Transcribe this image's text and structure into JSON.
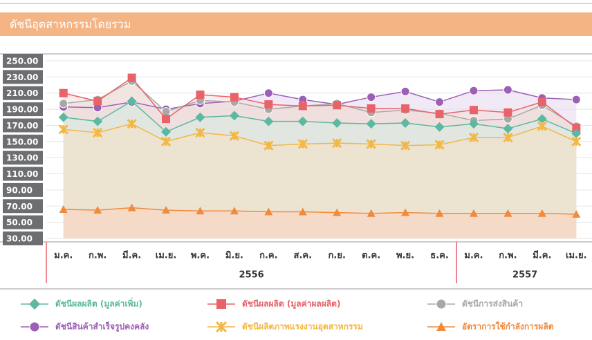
{
  "chart_data": {
    "type": "line",
    "title": "ดัชนีอุตสาหกรรมโดยรวม",
    "groups": [
      {
        "label": "2556",
        "categories": [
          "ม.ค.",
          "ก.พ.",
          "มี.ค.",
          "เม.ย.",
          "พ.ค.",
          "มิ.ย.",
          "ก.ค.",
          "ส.ค.",
          "ก.ย.",
          "ต.ค.",
          "พ.ย.",
          "ธ.ค."
        ]
      },
      {
        "label": "2557",
        "categories": [
          "ม.ค.",
          "ก.พ.",
          "มี.ค.",
          "เม.ย."
        ]
      }
    ],
    "ylim": [
      30,
      250
    ],
    "yticks": [
      {
        "value": 250,
        "label": "250.00"
      },
      {
        "value": 230,
        "label": "230.00"
      },
      {
        "value": 210,
        "label": "210.00"
      },
      {
        "value": 190,
        "label": "190.00"
      },
      {
        "value": 170,
        "label": "170.00"
      },
      {
        "value": 150,
        "label": "150.00"
      },
      {
        "value": 130,
        "label": "130.00"
      },
      {
        "value": 110,
        "label": "110.00"
      },
      {
        "value": 90,
        "label": "90.00"
      },
      {
        "value": 70,
        "label": "70.00"
      },
      {
        "value": 50,
        "label": "50.00"
      },
      {
        "value": 30,
        "label": "30.00"
      }
    ],
    "grid": true,
    "series": [
      {
        "name": "ดัชนีสินค้าสำเร็จรูปคงคลัง",
        "color": "#9b5fb5",
        "area_color": "#e6d9ee",
        "marker": "circle",
        "values": [
          193,
          192,
          199,
          190,
          197,
          200,
          210,
          202,
          196,
          205,
          212,
          199,
          213,
          214,
          204,
          202
        ]
      },
      {
        "name": "ดัชนีการส่งสินค้า",
        "color": "#a7a9a4",
        "area_color": "#dedfdb",
        "marker": "circle",
        "values": [
          197,
          202,
          225,
          187,
          201,
          199,
          190,
          194,
          197,
          186,
          189,
          185,
          176,
          178,
          195,
          169
        ]
      },
      {
        "name": "ดัชนีผลผลิต (มูลค่าผลผลิต)",
        "color": "#e8626a",
        "area_color": "#f5dcd8",
        "marker": "square",
        "values": [
          210,
          200,
          229,
          178,
          208,
          205,
          196,
          194,
          195,
          191,
          191,
          184,
          189,
          186,
          199,
          167
        ]
      },
      {
        "name": "ดัชนีผลผลิต (มูลค่าเพิ่ม)",
        "color": "#5cb8a0",
        "area_color": "#d6ebe0",
        "marker": "diamond",
        "values": [
          180,
          175,
          200,
          162,
          180,
          182,
          175,
          175,
          173,
          172,
          173,
          168,
          172,
          166,
          178,
          160
        ]
      },
      {
        "name": "ดัชนีผลิตภาพแรงงานอุตสาหกรรม",
        "color": "#f3b743",
        "area_color": "#f8e0c4",
        "marker": "star",
        "values": [
          165,
          161,
          172,
          150,
          161,
          157,
          145,
          147,
          148,
          147,
          145,
          146,
          155,
          155,
          169,
          150
        ]
      },
      {
        "name": "อัตราการใช้กำลังการผลิต",
        "color": "#f08a3c",
        "area_color": "#fbd6bf",
        "marker": "triangle",
        "values": [
          66,
          65,
          68,
          65,
          64,
          64,
          63,
          63,
          62,
          61,
          62,
          61,
          61,
          61,
          61,
          60
        ]
      }
    ],
    "legend_order": [
      3,
      2,
      1,
      0,
      4,
      5
    ]
  }
}
